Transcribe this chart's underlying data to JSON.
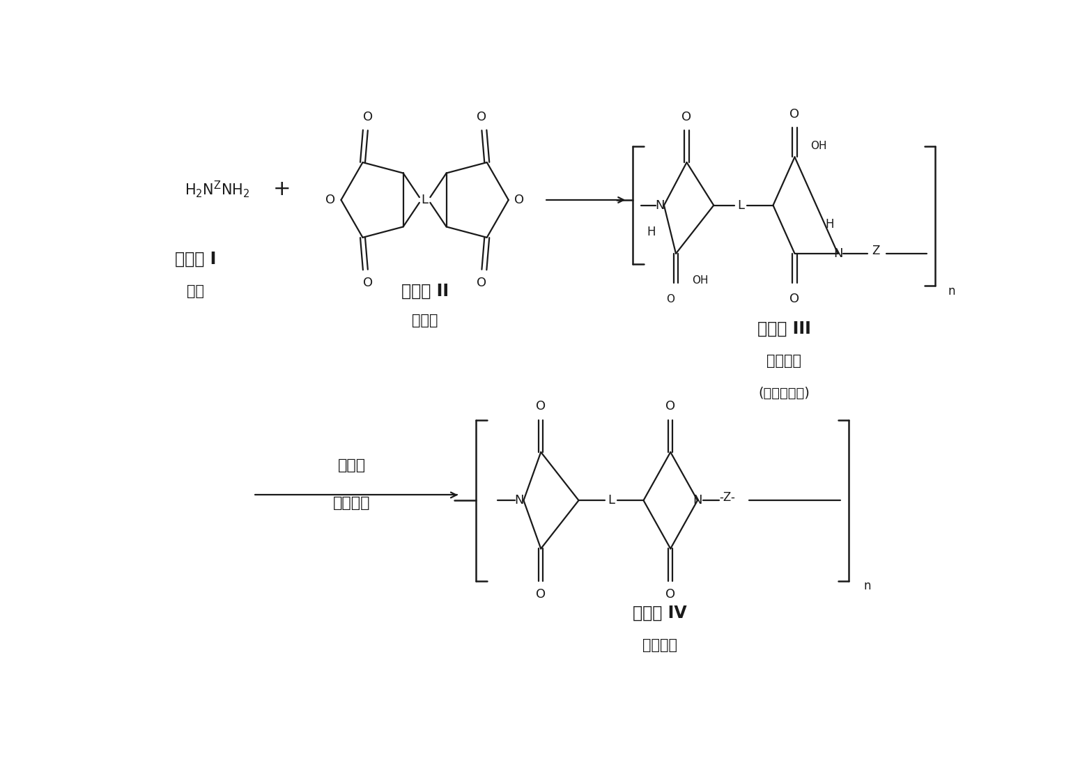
{
  "bg_color": "#ffffff",
  "text_color": "#1a1a1a",
  "fig_width": 15.6,
  "fig_height": 11.08,
  "dpi": 100,
  "formula1_label": "化学式 I",
  "formula1_sub": "二胺",
  "formula2_label": "化学式 II",
  "formula2_sub": "二酸酏",
  "formula3_label": "化学式 III",
  "formula3_sub1": "聚酰胺酸",
  "formula3_sub2": "(凝胶前驱物)",
  "formula4_label": "化学式 IV",
  "formula4_sub": "聚酰亚胺",
  "arrow_label_top": "脱水剂",
  "arrow_label_bot": "单胺，水"
}
